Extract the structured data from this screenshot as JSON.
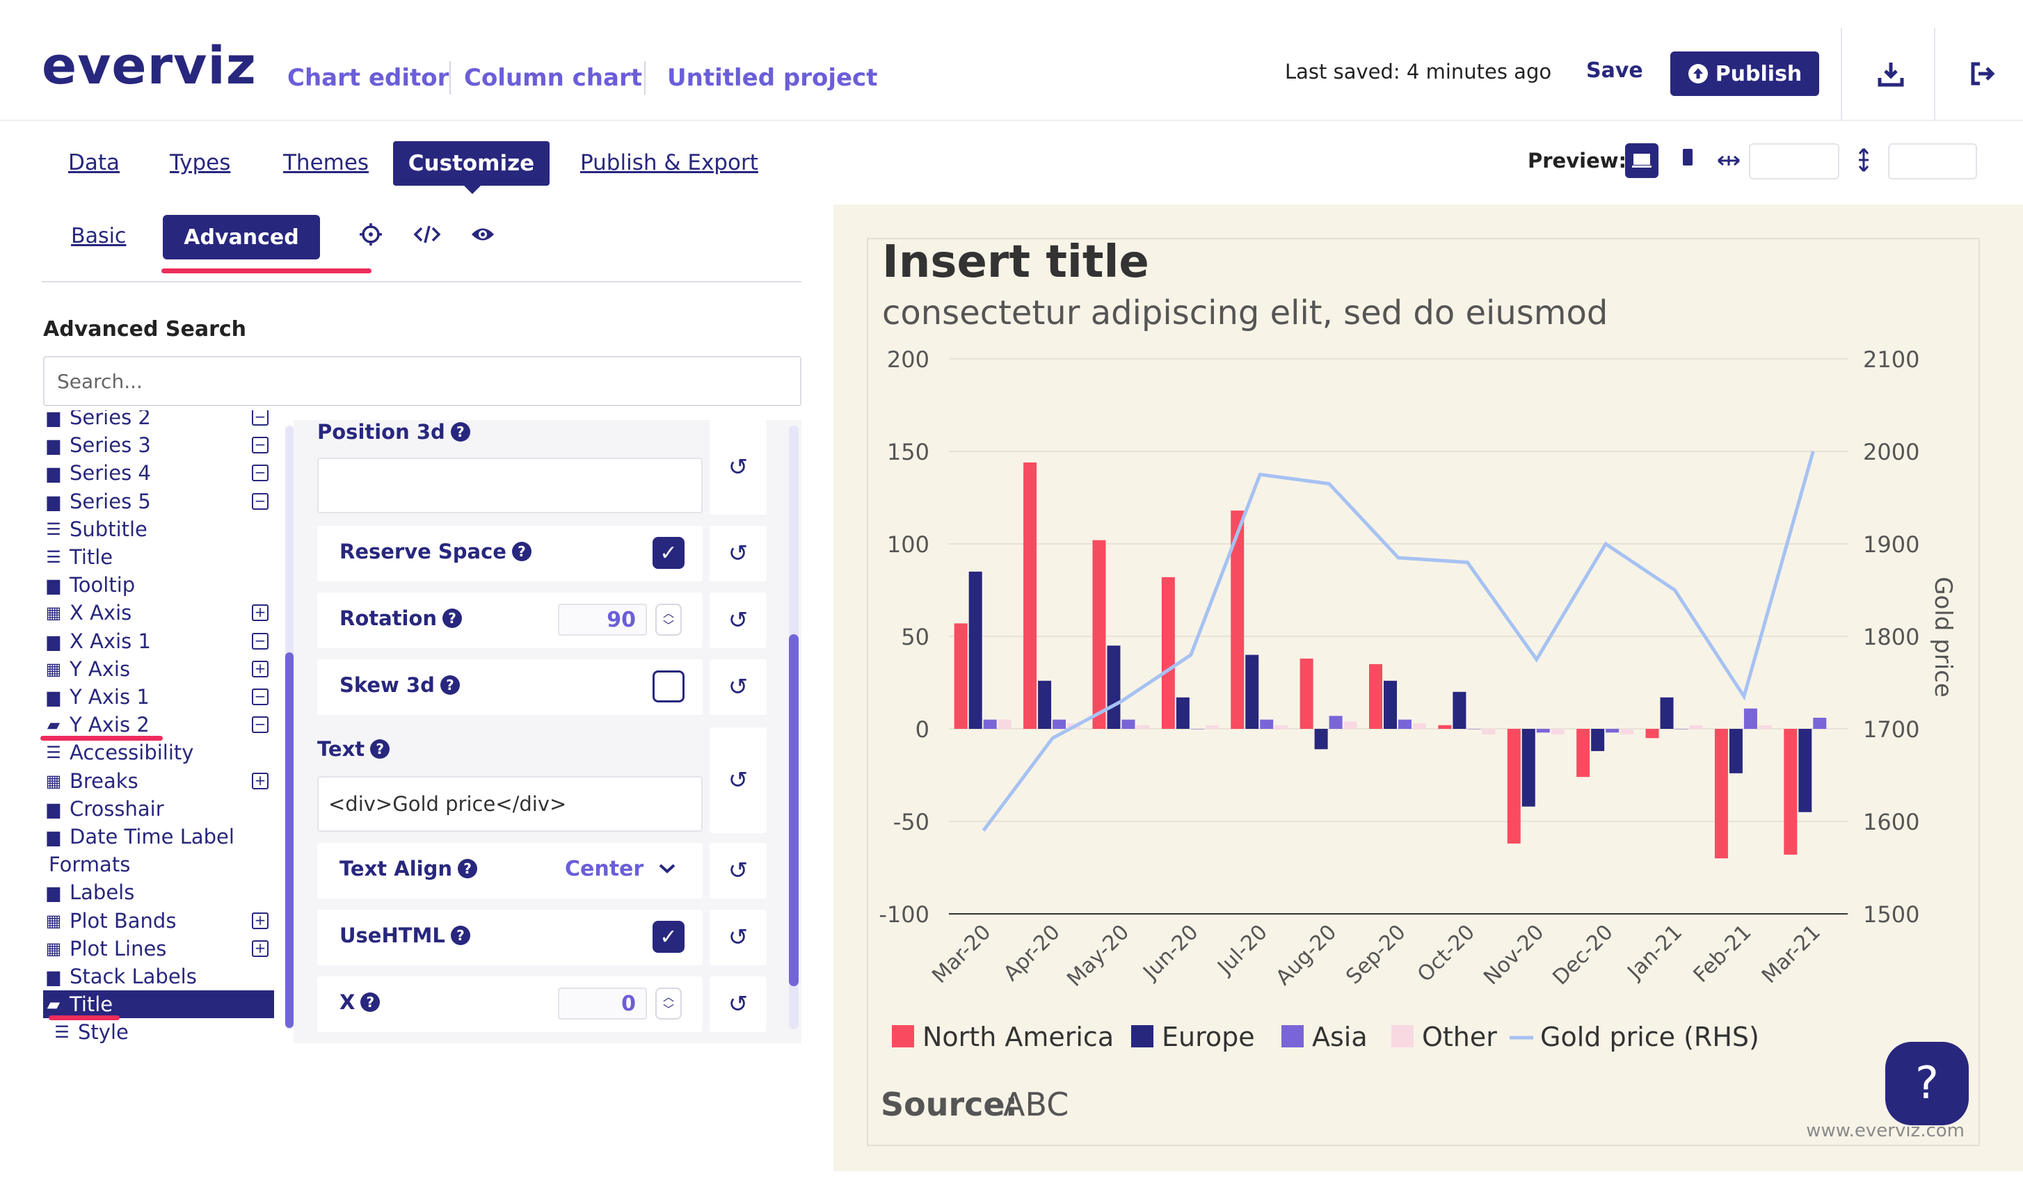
{
  "header": {
    "logo": "everviz",
    "breadcrumbs": [
      "Chart editor",
      "Column chart",
      "Untitled project"
    ],
    "last_saved": "Last saved: 4 minutes ago",
    "save_label": "Save",
    "publish_label": "Publish"
  },
  "tabs": [
    "Data",
    "Types",
    "Themes",
    "Customize",
    "Publish & Export"
  ],
  "active_tab": "Customize",
  "preview": {
    "label": "Preview:"
  },
  "subtabs": {
    "basic": "Basic",
    "advanced": "Advanced"
  },
  "advanced_search": {
    "label": "Advanced Search",
    "placeholder": "Search..."
  },
  "tree": [
    {
      "label": "Series 2",
      "icon": "folder-icon",
      "toggle": "minus"
    },
    {
      "label": "Series 3",
      "icon": "folder-icon",
      "toggle": "minus"
    },
    {
      "label": "Series 4",
      "icon": "folder-icon",
      "toggle": "minus"
    },
    {
      "label": "Series 5",
      "icon": "folder-icon",
      "toggle": "minus"
    },
    {
      "label": "Subtitle",
      "icon": "sliders-icon",
      "toggle": ""
    },
    {
      "label": "Title",
      "icon": "sliders-icon",
      "toggle": ""
    },
    {
      "label": "Tooltip",
      "icon": "folder-icon",
      "toggle": ""
    },
    {
      "label": "X Axis",
      "icon": "table-icon",
      "toggle": "plus"
    },
    {
      "label": "X Axis 1",
      "icon": "folder-icon",
      "toggle": "minus"
    },
    {
      "label": "Y Axis",
      "icon": "table-icon",
      "toggle": "plus"
    },
    {
      "label": "Y Axis 1",
      "icon": "folder-icon",
      "toggle": "minus"
    },
    {
      "label": "Y Axis 2",
      "icon": "folder-open-icon",
      "toggle": "minus"
    },
    {
      "label": "Accessibility",
      "icon": "sliders-icon",
      "toggle": ""
    },
    {
      "label": "Breaks",
      "icon": "table-icon",
      "toggle": "plus"
    },
    {
      "label": "Crosshair",
      "icon": "folder-icon",
      "toggle": ""
    },
    {
      "label": "Date Time Label",
      "icon": "folder-icon",
      "toggle": ""
    },
    {
      "label": "Formats",
      "icon": "",
      "toggle": ""
    },
    {
      "label": "Labels",
      "icon": "folder-icon",
      "toggle": ""
    },
    {
      "label": "Plot Bands",
      "icon": "table-icon",
      "toggle": "plus"
    },
    {
      "label": "Plot Lines",
      "icon": "table-icon",
      "toggle": "plus"
    },
    {
      "label": "Stack Labels",
      "icon": "folder-icon",
      "toggle": ""
    },
    {
      "label": "Title",
      "icon": "folder-open-icon",
      "toggle": "",
      "selected": true
    },
    {
      "label": "Style",
      "icon": "sliders-icon",
      "toggle": ""
    }
  ],
  "props": {
    "position3d": "Position 3d",
    "reserve_space": "Reserve Space",
    "rotation": "Rotation",
    "rotation_value": "90",
    "skew3d": "Skew 3d",
    "text": "Text",
    "text_value": "<div>Gold price</div>",
    "text_align": "Text Align",
    "text_align_value": "Center",
    "usehtml": "UseHTML",
    "x": "X",
    "x_value": "0",
    "reserve_space_checked": true,
    "skew3d_checked": false,
    "usehtml_checked": true
  },
  "chart_data": {
    "type": "bar",
    "title": "Insert title",
    "subtitle": "consectetur adipiscing elit, sed do eiusmod",
    "categories": [
      "Mar-20",
      "Apr-20",
      "May-20",
      "Jun-20",
      "Jul-20",
      "Aug-20",
      "Sep-20",
      "Oct-20",
      "Nov-20",
      "Dec-20",
      "Jan-21",
      "Feb-21",
      "Mar-21"
    ],
    "ylim": [
      -100,
      200
    ],
    "yticks": [
      "200",
      "150",
      "100",
      "50",
      "0",
      "-50",
      "-100"
    ],
    "y2lim": [
      1500,
      2100
    ],
    "y2ticks": [
      "2100",
      "2000",
      "1900",
      "1800",
      "1700",
      "1600",
      "1500"
    ],
    "y2label": "Gold price",
    "series": [
      {
        "name": "North America",
        "color": "#f84b60",
        "values": [
          57,
          144,
          102,
          82,
          118,
          38,
          35,
          2,
          -62,
          -26,
          -5,
          -70,
          -68
        ]
      },
      {
        "name": "Europe",
        "color": "#28277e",
        "values": [
          85,
          26,
          45,
          17,
          40,
          -11,
          26,
          20,
          -42,
          -12,
          17,
          -24,
          -45
        ]
      },
      {
        "name": "Asia",
        "color": "#7a65d8",
        "values": [
          5,
          5,
          5,
          0,
          5,
          7,
          5,
          0,
          -2,
          -2,
          0,
          11,
          6
        ]
      },
      {
        "name": "Other",
        "color": "#f8d9e2",
        "values": [
          5,
          3,
          2,
          2,
          2,
          4,
          3,
          -3,
          -3,
          -3,
          2,
          2,
          0
        ]
      }
    ],
    "line_series": {
      "name": "Gold price (RHS)",
      "color": "#a6c2f2",
      "values": [
        1590,
        1690,
        1730,
        1780,
        1975,
        1965,
        1885,
        1880,
        1775,
        1900,
        1850,
        1735,
        2000
      ]
    },
    "source_label": "Source:",
    "source_value": "ABC",
    "credit": "www.everviz.com",
    "grid": true,
    "legend_placement": "bottom-left"
  },
  "colors": {
    "brand": "#28277e",
    "accent": "#6b5ed8",
    "chart_bg": "#f8f3e7",
    "annotation": "#ee2c5c"
  },
  "help": "?"
}
